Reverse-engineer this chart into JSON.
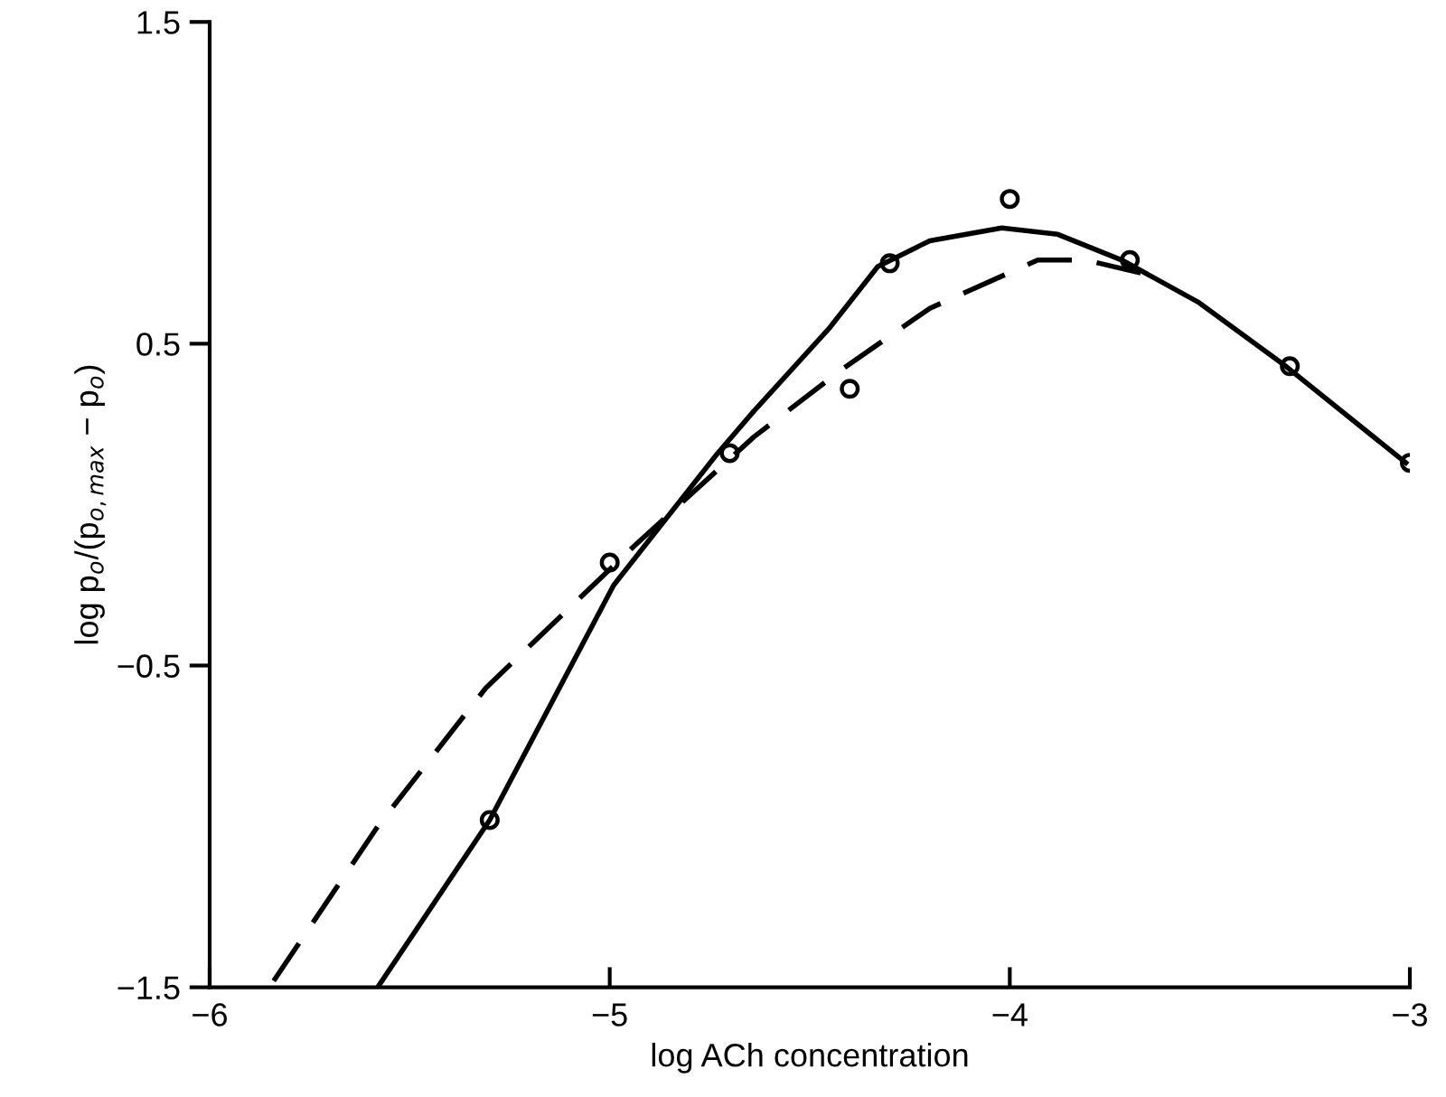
{
  "chart_data": {
    "type": "line",
    "xlabel": "log ACh concentration",
    "ylabel": "log p$_{o}$/(p$_{o,max}$ − p$_{o}$)",
    "xlim": [
      -6,
      -3
    ],
    "ylim": [
      -1.5,
      1.5
    ],
    "xticks": [
      {
        "value": -6,
        "label": "−6"
      },
      {
        "value": -5,
        "label": "−5"
      },
      {
        "value": -4,
        "label": "−4"
      },
      {
        "value": -3,
        "label": "−3"
      }
    ],
    "yticks": [
      {
        "value": -1.5,
        "label": "−1.5"
      },
      {
        "value": -0.5,
        "label": "−0.5"
      },
      0.5,
      1.5
    ],
    "grid": false,
    "legend": false,
    "series": [
      {
        "type": "scatter",
        "marker": "circle",
        "color": "#000000",
        "x": [
          -5.3,
          -5.0,
          -4.7,
          -4.4,
          -4.3,
          -4.0,
          -3.7,
          -3.3,
          -3.0
        ],
        "values": [
          -0.98,
          -0.18,
          0.16,
          0.36,
          0.75,
          0.95,
          0.76,
          0.43,
          0.13
        ]
      },
      {
        "line_style": "solid",
        "marker": "none",
        "color": "#000000",
        "x": [
          -5.58,
          -5.3,
          -4.99,
          -4.73,
          -4.64,
          -4.45,
          -4.33,
          -4.2,
          -4.02,
          -3.88,
          -3.72,
          -3.53,
          -3.31,
          -3.01
        ],
        "values": [
          -1.5,
          -0.98,
          -0.25,
          0.16,
          0.29,
          0.55,
          0.74,
          0.82,
          0.86,
          0.84,
          0.76,
          0.63,
          0.43,
          0.13
        ]
      },
      {
        "line_style": "dashed",
        "marker": "none",
        "color": "#000000",
        "x": [
          -5.84,
          -5.58,
          -5.31,
          -4.94,
          -4.64,
          -4.42,
          -4.2,
          -3.93,
          -3.81,
          -3.64
        ],
        "values": [
          -1.48,
          -1.0,
          -0.57,
          -0.13,
          0.21,
          0.42,
          0.61,
          0.76,
          0.76,
          0.71
        ]
      }
    ]
  }
}
